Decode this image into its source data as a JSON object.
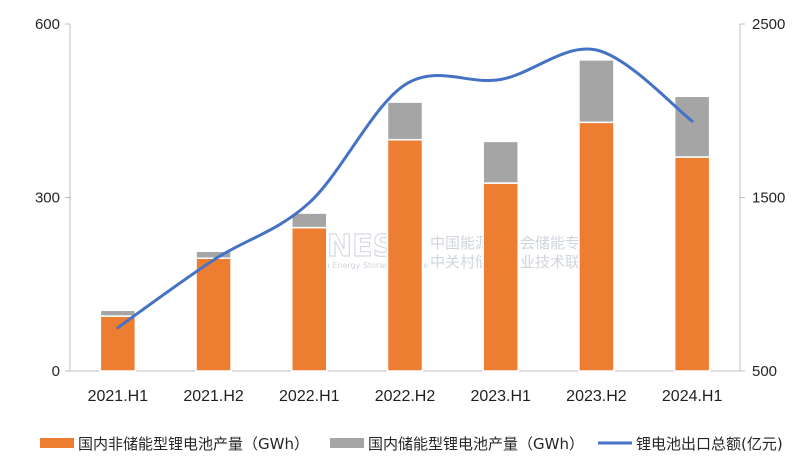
{
  "chart_data": {
    "type": "bar",
    "categories": [
      "2021.H1",
      "2021.H2",
      "2022.H1",
      "2022.H2",
      "2023.H1",
      "2023.H2",
      "2024.H1"
    ],
    "series": [
      {
        "name": "国内非储能型锂电池产量（GWh）",
        "type": "bar",
        "stack": "production",
        "axis": "left",
        "color": "#ed7d31",
        "values": [
          95,
          195,
          248,
          400,
          325,
          430,
          370
        ]
      },
      {
        "name": "国内储能型锂电池产量（GWh）",
        "type": "bar",
        "stack": "production",
        "axis": "left",
        "color": "#a5a5a5",
        "values": [
          10,
          12,
          25,
          65,
          72,
          108,
          105
        ]
      },
      {
        "name": "锂电池出口总额(亿元)",
        "type": "line",
        "smooth": true,
        "axis": "right",
        "color": "#4472c4",
        "values": [
          750,
          1140,
          1470,
          2150,
          2180,
          2350,
          1940
        ]
      }
    ],
    "y_left": {
      "ylim": [
        0,
        600
      ],
      "ticks": [
        "0",
        "300",
        "600"
      ]
    },
    "y_right": {
      "ylim": [
        500,
        2500
      ],
      "ticks": [
        "500",
        "1500",
        "2500"
      ]
    },
    "legend_position": "bottom",
    "grid": false
  },
  "watermark": {
    "logo": "CNESA",
    "line1": "中国能源研究会储能专委会",
    "line2": "中关村储能产业技术联盟",
    "sub": "China Energy Storage Alliance"
  }
}
